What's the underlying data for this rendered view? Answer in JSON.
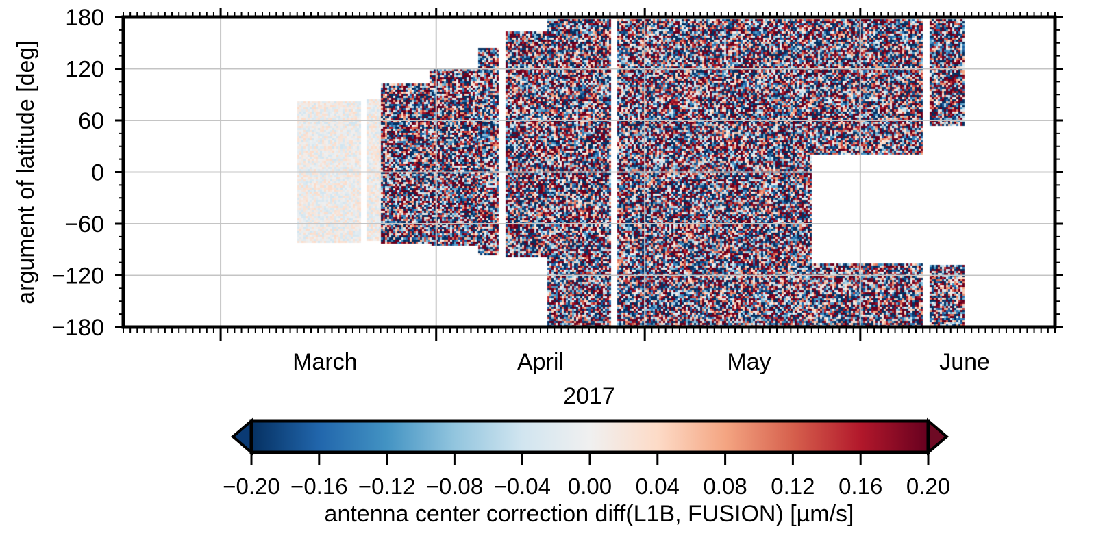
{
  "chart_data": {
    "type": "heatmap",
    "title": "",
    "xlabel": "2017",
    "ylabel": "argument of latitude [deg]",
    "ylim": [
      -180,
      180
    ],
    "xlim": [
      "2017-02-15",
      "2017-06-29"
    ],
    "grid": true,
    "yticks": [
      -180,
      -120,
      -60,
      0,
      60,
      120,
      180
    ],
    "ytick_labels": [
      "−180",
      "−120",
      "−60",
      "0",
      "60",
      "120",
      "180"
    ],
    "xticks": [
      {
        "label": "March",
        "date": "2017-03-16"
      },
      {
        "label": "April",
        "date": "2017-04-16"
      },
      {
        "label": "May",
        "date": "2017-05-16"
      },
      {
        "label": "June",
        "date": "2017-06-16"
      }
    ],
    "month_boundaries": [
      "2017-03-01",
      "2017-04-01",
      "2017-05-01",
      "2017-06-01"
    ],
    "colorbar": {
      "label": "antenna center correction diff(L1B, FUSION)  [µm/s]",
      "min": -0.2,
      "max": 0.2,
      "extend": "both",
      "ticks": [
        -0.2,
        -0.16,
        -0.12,
        -0.08,
        -0.04,
        0.0,
        0.04,
        0.08,
        0.12,
        0.16,
        0.2
      ],
      "tick_labels": [
        "−0.20",
        "−0.16",
        "−0.12",
        "−0.08",
        "−0.04",
        "0.00",
        "0.04",
        "0.08",
        "0.12",
        "0.16",
        "0.20"
      ],
      "colormap": [
        "#053061",
        "#2166ac",
        "#4393c3",
        "#92c5de",
        "#d1e5f0",
        "#f0f0f0",
        "#fddbc7",
        "#f4a582",
        "#d6604d",
        "#b2182b",
        "#67001f"
      ]
    },
    "series": [
      {
        "start": "2017-03-12",
        "end": "2017-03-21",
        "ymin": -82,
        "ymax": 82,
        "amplitude": 0.04
      },
      {
        "start": "2017-03-22",
        "end": "2017-03-24",
        "ymin": -80,
        "ymax": 85,
        "amplitude": 0.04
      },
      {
        "start": "2017-03-24",
        "end": "2017-03-31",
        "ymin": -82,
        "ymax": 103,
        "amplitude": 0.3
      },
      {
        "start": "2017-03-31",
        "end": "2017-04-07",
        "ymin": -85,
        "ymax": 120,
        "amplitude": 0.3
      },
      {
        "start": "2017-04-07",
        "end": "2017-04-10",
        "ymin": -95,
        "ymax": 144,
        "amplitude": 0.3
      },
      {
        "start": "2017-04-11",
        "end": "2017-04-17",
        "ymin": -97,
        "ymax": 163,
        "amplitude": 0.3
      },
      {
        "start": "2017-04-17",
        "end": "2017-04-26",
        "ymin": -180,
        "ymax": 178,
        "amplitude": 0.3
      },
      {
        "start": "2017-04-27",
        "end": "2017-04-30",
        "ymin": -180,
        "ymax": 178,
        "amplitude": 0.3
      },
      {
        "start": "2017-04-30",
        "end": "2017-05-01",
        "ymin": -180,
        "ymax": 178,
        "amplitude": 0.3
      },
      {
        "start": "2017-05-01",
        "end": "2017-05-10",
        "ymin": -180,
        "ymax": 178,
        "amplitude": 0.3
      },
      {
        "start": "2017-05-10",
        "end": "2017-05-22",
        "ymin": -180,
        "ymax": 178,
        "amplitude": 0.3
      },
      {
        "start": "2017-05-22",
        "end": "2017-05-23",
        "ymin": -180,
        "ymax": 178,
        "amplitude": 0.3
      },
      {
        "start": "2017-05-23",
        "end": "2017-05-25",
        "ymin": -180,
        "ymax": 178,
        "amplitude": 0.3
      },
      {
        "start": "2017-05-25",
        "end": "2017-06-10",
        "ymin": 22,
        "ymax": 178,
        "amplitude": 0.3
      },
      {
        "start": "2017-05-25",
        "end": "2017-06-10",
        "ymin": -180,
        "ymax": -106,
        "amplitude": 0.3
      },
      {
        "start": "2017-06-11",
        "end": "2017-06-16",
        "ymin": 55,
        "ymax": 178,
        "amplitude": 0.3
      },
      {
        "start": "2017-06-11",
        "end": "2017-06-16",
        "ymin": -180,
        "ymax": -108,
        "amplitude": 0.3
      }
    ]
  }
}
